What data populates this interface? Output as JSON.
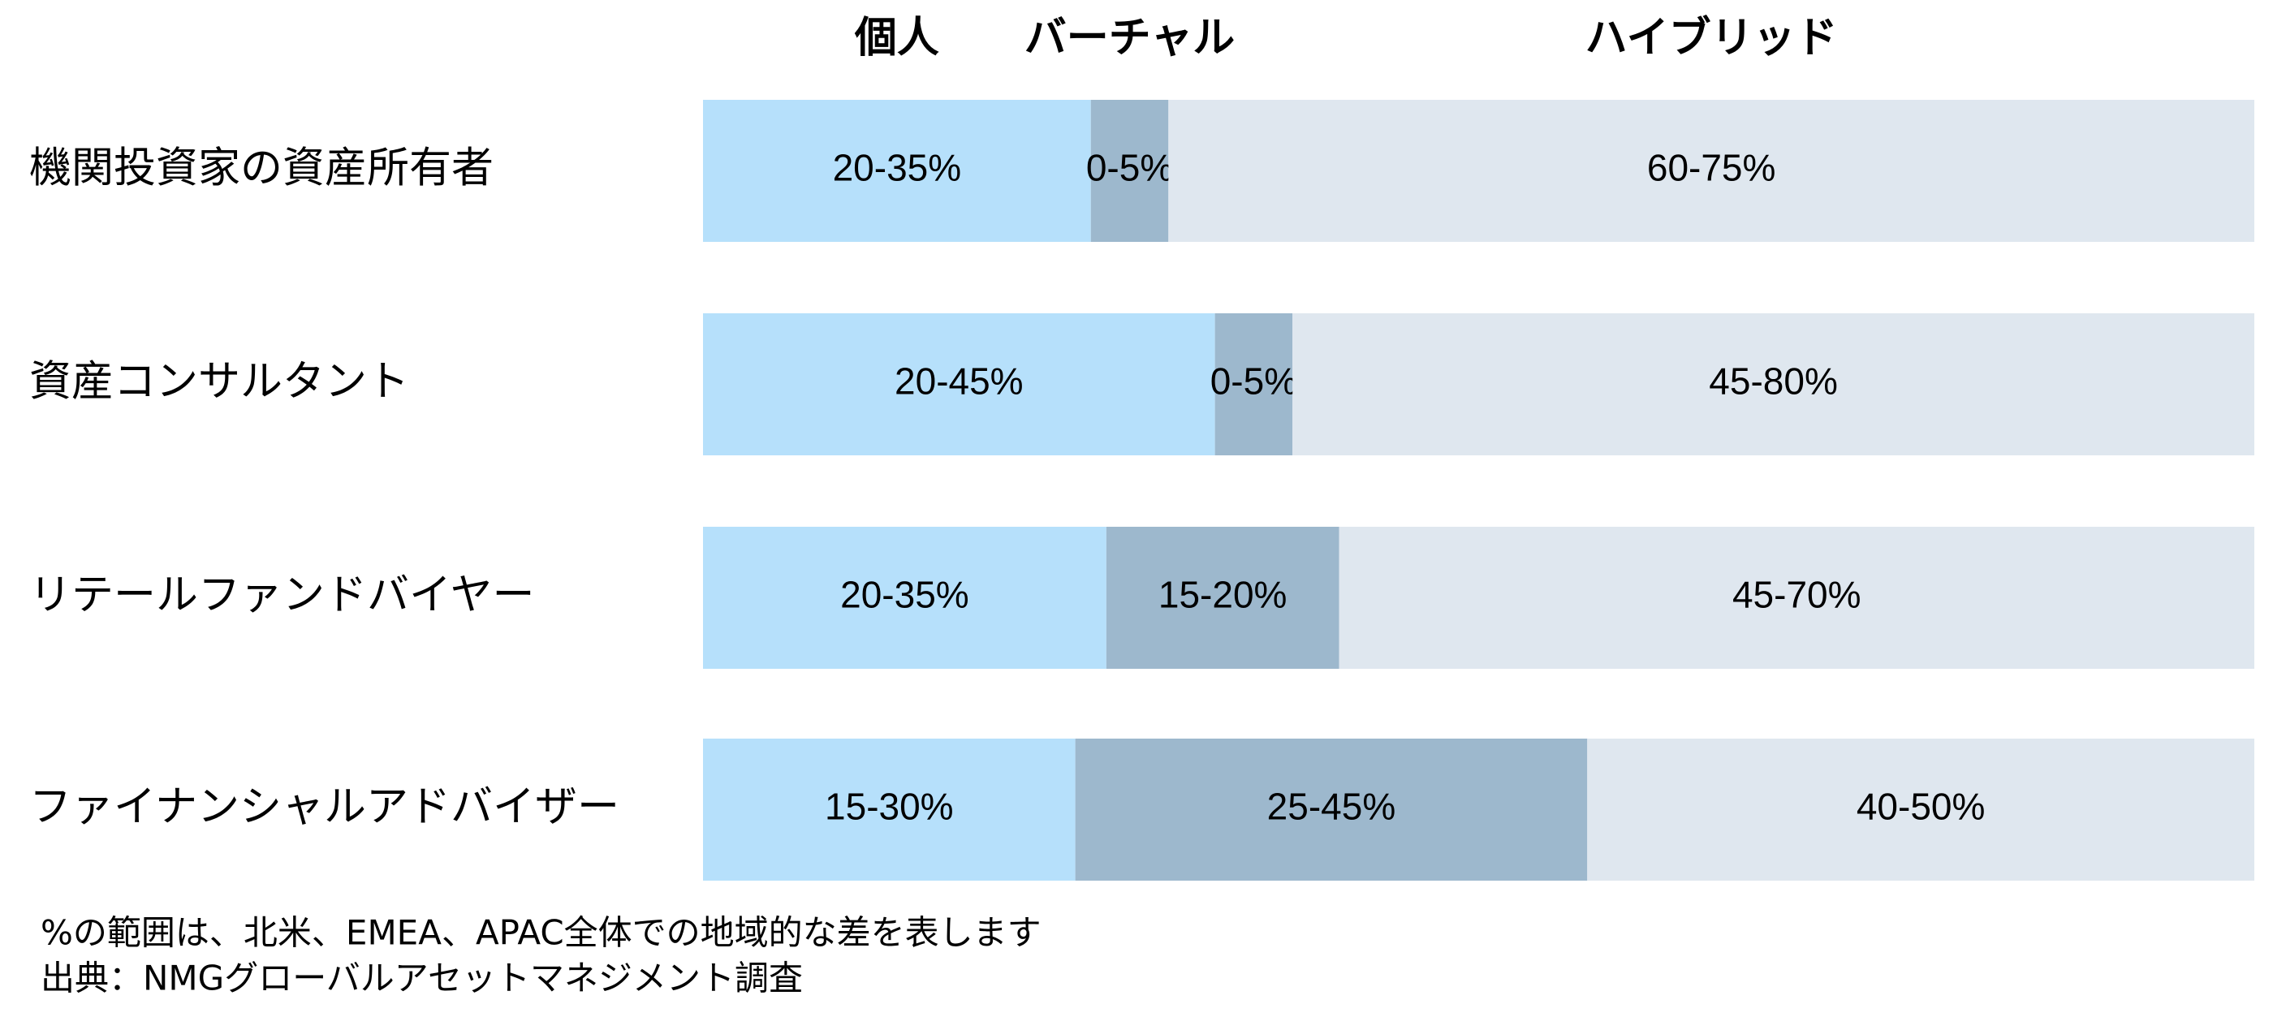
{
  "chart_data": {
    "type": "stacked_barh",
    "categories": [
      "機関投資家の資産所有者",
      "資産コンサルタント",
      "リテールファンドバイヤー",
      "ファイナンシャルアドバイザー"
    ],
    "series": [
      {
        "name": "個人",
        "color": "#b6e0fb",
        "values": [
          25,
          33,
          26,
          24
        ],
        "value_labels": [
          "20-35%",
          "20-45%",
          "20-35%",
          "15-30%"
        ]
      },
      {
        "name": "バーチャル",
        "color": "#9db8cd",
        "values": [
          5,
          5,
          15,
          33
        ],
        "value_labels": [
          "0-5%",
          "0-5%",
          "15-20%",
          "25-45%"
        ]
      },
      {
        "name": "ハイブリッド",
        "color": "#dfe7ef",
        "values": [
          70,
          62,
          59,
          43
        ],
        "value_labels": [
          "60-75%",
          "45-80%",
          "45-70%",
          "40-50%"
        ]
      }
    ],
    "xlim": [
      0,
      100
    ],
    "notes": [
      "%の範囲は、北米、EMEA、APAC全体での地域的な差を表します",
      "出典：NMGグローバルアセットマネジメント調査"
    ]
  }
}
